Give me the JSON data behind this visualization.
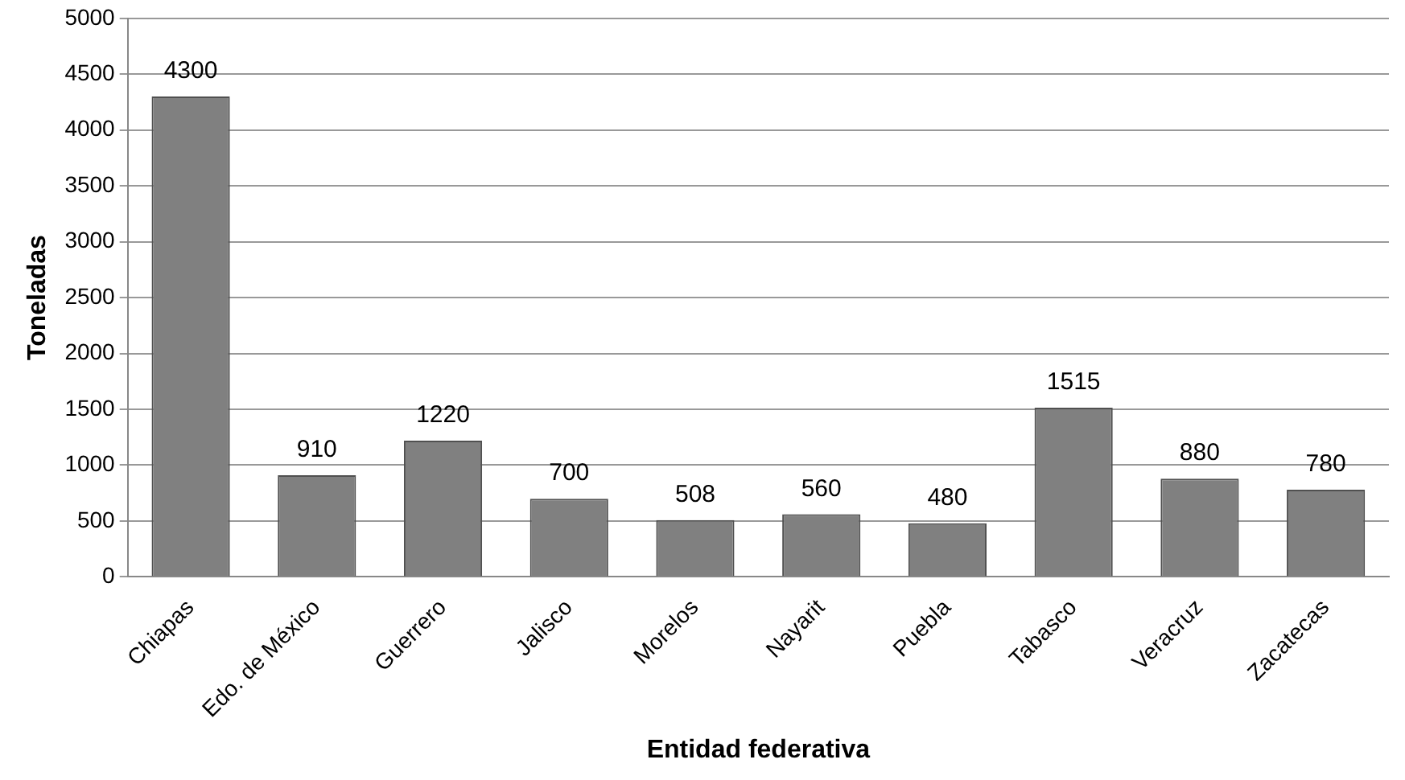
{
  "chart_data": {
    "type": "bar",
    "xlabel": "Entidad federativa",
    "ylabel": "Toneladas",
    "categories": [
      "Chiapas",
      "Edo. de México",
      "Guerrero",
      "Jalisco",
      "Morelos",
      "Nayarit",
      "Puebla",
      "Tabasco",
      "Veracruz",
      "Zacatecas"
    ],
    "values": [
      4300,
      910,
      1220,
      700,
      508,
      560,
      480,
      1515,
      880,
      780
    ],
    "color": "#808080",
    "ylim": [
      0,
      5000
    ],
    "yticks": [
      0,
      500,
      1000,
      1500,
      2000,
      2500,
      3000,
      3500,
      4000,
      4500,
      5000
    ],
    "grid": "y",
    "data_labels": true,
    "legend": false
  }
}
